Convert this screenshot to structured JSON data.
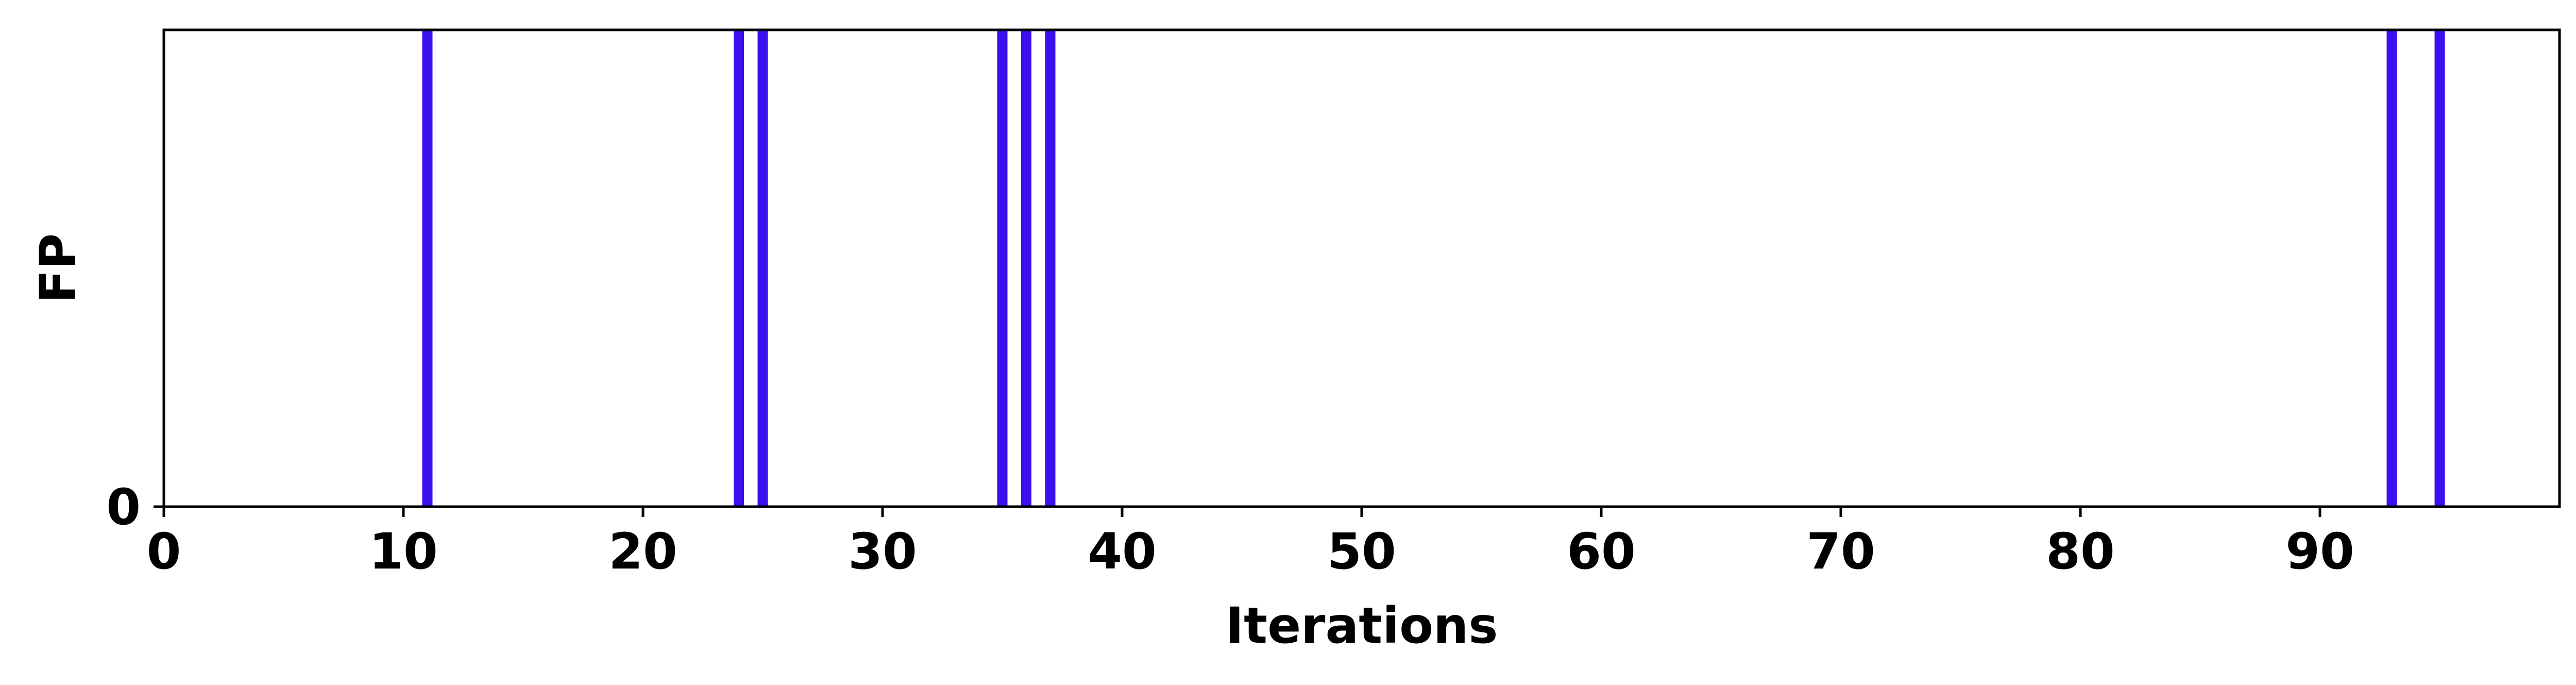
{
  "chart_data": {
    "type": "bar",
    "title": "",
    "xlabel": "Iterations",
    "ylabel": "FP",
    "xlim": [
      0,
      100
    ],
    "ylim": [
      0,
      1
    ],
    "x_ticks": [
      0,
      10,
      20,
      30,
      40,
      50,
      60,
      70,
      80,
      90
    ],
    "y_ticks": [
      0
    ],
    "grid": false,
    "legend": "none",
    "bar_color": "#3a0ff0",
    "x": [
      11,
      24,
      25,
      35,
      36,
      37,
      93,
      95
    ],
    "values": [
      1,
      1,
      1,
      1,
      1,
      1,
      1,
      1
    ]
  }
}
